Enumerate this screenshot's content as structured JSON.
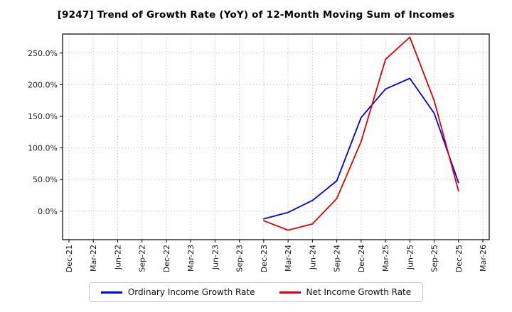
{
  "title": "[9247]  Trend of Growth Rate (YoY) of 12-Month Moving Sum of Incomes",
  "chart_data": {
    "type": "line",
    "categories": [
      "Dec-21",
      "Mar-22",
      "Jun-22",
      "Sep-22",
      "Dec-22",
      "Mar-23",
      "Jun-23",
      "Sep-23",
      "Dec-23",
      "Mar-24",
      "Jun-24",
      "Sep-24",
      "Dec-24",
      "Mar-25",
      "Jun-25",
      "Sep-25",
      "Dec-25",
      "Mar-26"
    ],
    "series": [
      {
        "name": "Ordinary Income Growth Rate",
        "color": "#0000dd",
        "values": [
          null,
          null,
          null,
          null,
          null,
          null,
          null,
          null,
          -12,
          -2,
          17,
          48,
          148,
          193,
          210,
          155,
          45,
          null
        ]
      },
      {
        "name": "Net Income Growth Rate",
        "color": "#dd0000",
        "values": [
          null,
          null,
          null,
          null,
          null,
          null,
          null,
          null,
          -15,
          -30,
          -20,
          20,
          110,
          240,
          275,
          175,
          32,
          null
        ]
      }
    ],
    "ylabel": "",
    "xlabel": "",
    "ylim": [
      -45,
      280
    ],
    "yticks": [
      0,
      50,
      100,
      150,
      200,
      250
    ],
    "ytick_suffix": "%",
    "grid": true,
    "grid_style": "dotted",
    "legend_position": "bottom"
  }
}
